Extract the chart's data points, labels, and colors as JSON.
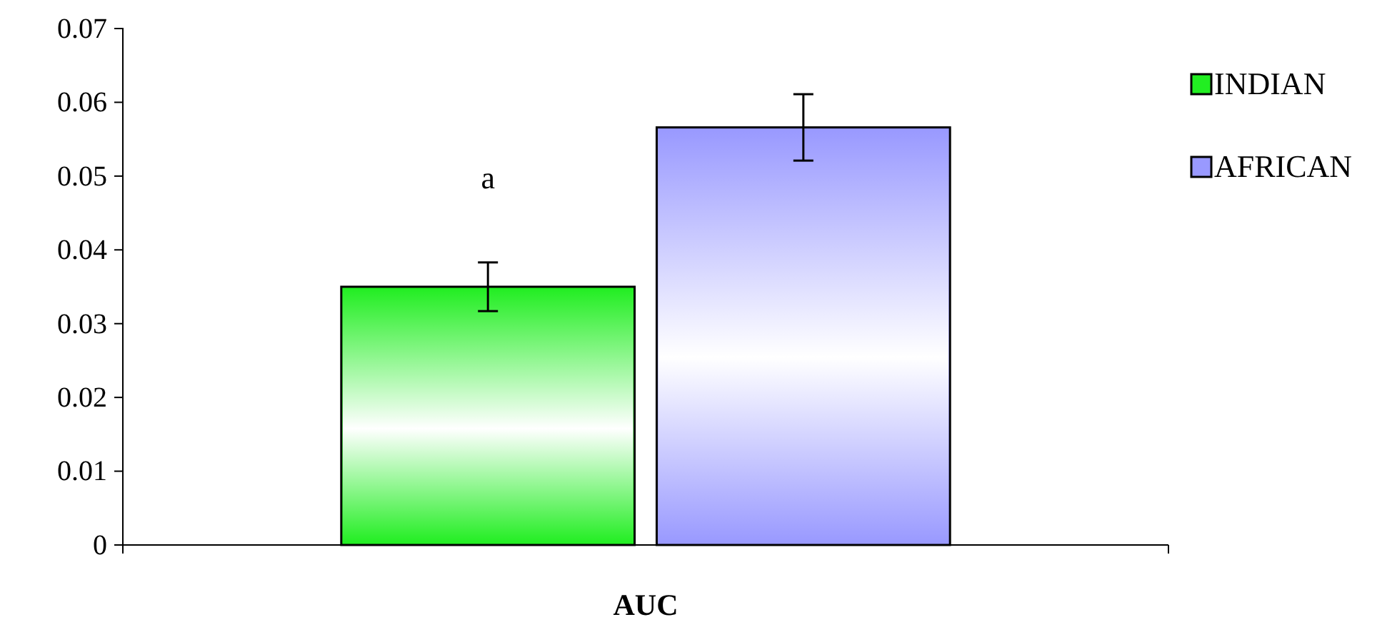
{
  "chart_data": {
    "type": "bar",
    "categories": [
      "AUC"
    ],
    "series": [
      {
        "name": "INDIAN",
        "color": "#22ee22",
        "values": [
          0.035
        ],
        "errors": [
          0.0033
        ]
      },
      {
        "name": "AFRICAN",
        "color": "#9999ff",
        "values": [
          0.0566
        ],
        "errors": [
          0.0045
        ]
      }
    ],
    "ylim": [
      0,
      0.07
    ],
    "yticks": [
      {
        "value": 0,
        "label": "0"
      },
      0.01,
      0.02,
      0.03,
      0.04,
      0.05,
      0.06,
      0.07
    ],
    "annotations": [
      "a"
    ],
    "legend": "right",
    "grid": false
  }
}
